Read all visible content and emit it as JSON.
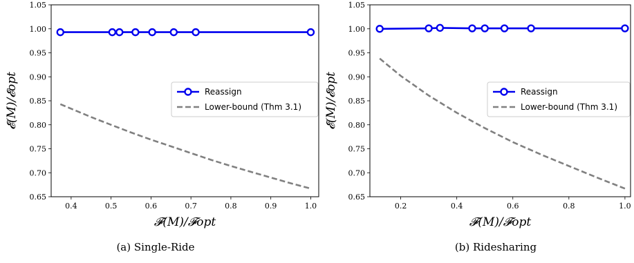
{
  "chart_data": [
    {
      "type": "line",
      "caption": "(a) Single-Ride",
      "xlabel": "𝓕(M)/𝓕opt",
      "ylabel": "𝓔(M)/𝓔opt",
      "xlim": [
        0.35,
        1.02
      ],
      "ylim": [
        0.65,
        1.05
      ],
      "xticks": [
        0.4,
        0.5,
        0.6,
        0.7,
        0.8,
        0.9,
        1.0
      ],
      "xtick_labels": [
        "0.4",
        "0.5",
        "0.6",
        "0.7",
        "0.8",
        "0.9",
        "1.0"
      ],
      "yticks": [
        0.65,
        0.7,
        0.75,
        0.8,
        0.85,
        0.9,
        0.95,
        1.0,
        1.05
      ],
      "ytick_labels": [
        "0.65",
        "0.70",
        "0.75",
        "0.80",
        "0.85",
        "0.90",
        "0.95",
        "1.00",
        "1.05"
      ],
      "legend_position": "center-right",
      "series": [
        {
          "name": "Reassign",
          "style": "solid-marker",
          "color": "#0000ee",
          "x": [
            0.373,
            0.503,
            0.521,
            0.561,
            0.603,
            0.657,
            0.712,
            1.0
          ],
          "y": [
            0.993,
            0.993,
            0.993,
            0.993,
            0.993,
            0.993,
            0.993,
            0.993
          ]
        },
        {
          "name": "Lower-bound (Thm 3.1)",
          "style": "dashed",
          "color": "#808080",
          "x": [
            0.373,
            0.45,
            0.5,
            0.55,
            0.6,
            0.65,
            0.7,
            0.75,
            0.8,
            0.85,
            0.9,
            0.95,
            1.0
          ],
          "y": [
            0.843,
            0.816,
            0.8,
            0.784,
            0.769,
            0.755,
            0.741,
            0.727,
            0.714,
            0.702,
            0.69,
            0.678,
            0.667
          ]
        }
      ]
    },
    {
      "type": "line",
      "caption": "(b) Ridesharing",
      "xlabel": "𝓕(M)/𝓕opt",
      "ylabel": "𝓔(M)/𝓔opt",
      "xlim": [
        0.09,
        1.02
      ],
      "ylim": [
        0.65,
        1.05
      ],
      "xticks": [
        0.2,
        0.4,
        0.6,
        0.8,
        1.0
      ],
      "xtick_labels": [
        "0.2",
        "0.4",
        "0.6",
        "0.8",
        "1.0"
      ],
      "yticks": [
        0.65,
        0.7,
        0.75,
        0.8,
        0.85,
        0.9,
        0.95,
        1.0,
        1.05
      ],
      "ytick_labels": [
        "0.65",
        "0.70",
        "0.75",
        "0.80",
        "0.85",
        "0.90",
        "0.95",
        "1.00",
        "1.05"
      ],
      "legend_position": "center-right",
      "series": [
        {
          "name": "Reassign",
          "style": "solid-marker",
          "color": "#0000ee",
          "x": [
            0.125,
            0.3,
            0.34,
            0.455,
            0.5,
            0.57,
            0.665,
            1.0
          ],
          "y": [
            1.0,
            1.001,
            1.002,
            1.001,
            1.001,
            1.001,
            1.001,
            1.001
          ]
        },
        {
          "name": "Lower-bound (Thm 3.1)",
          "style": "dashed",
          "color": "#808080",
          "x": [
            0.125,
            0.2,
            0.3,
            0.4,
            0.5,
            0.6,
            0.7,
            0.8,
            0.9,
            1.0
          ],
          "y": [
            0.938,
            0.902,
            0.861,
            0.825,
            0.793,
            0.764,
            0.738,
            0.714,
            0.69,
            0.667
          ]
        }
      ]
    }
  ]
}
